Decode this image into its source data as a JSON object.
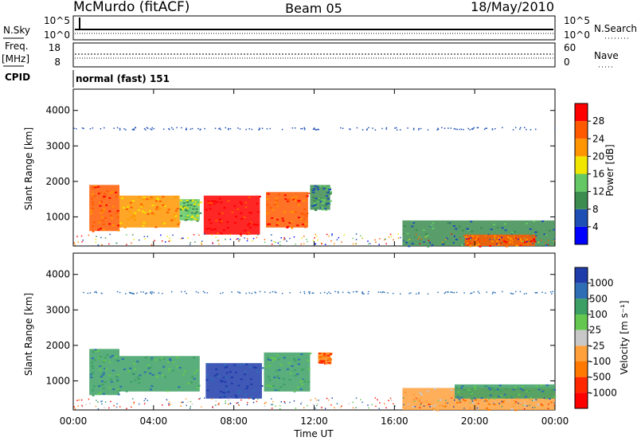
{
  "header": {
    "station": "McMurdo (fitACF)",
    "beam": "Beam 05",
    "date": "18/May/2010"
  },
  "status": {
    "nsky_label": "N.Sky",
    "nsky_ticks": [
      "10^5",
      "10^0"
    ],
    "nsearch_label": "N.Search",
    "nsearch_ticks": [
      "10^5",
      "10^0"
    ],
    "freq_label": "Freq.",
    "freq_unit": "[MHz]",
    "freq_ticks": [
      "18",
      "8"
    ],
    "nave_label": "Nave",
    "nave_ticks": [
      "60",
      "0"
    ],
    "cpid_label": "CPID",
    "cpid_value": "normal (fast) 151"
  },
  "colors": {
    "power": [
      "#0000ff",
      "#1e4fb4",
      "#3c8c50",
      "#64c864",
      "#f0e600",
      "#ff9600",
      "#ff5a00",
      "#ff0000"
    ],
    "velocity": [
      "#1e3caa",
      "#2d6eb4",
      "#3ca064",
      "#64c850",
      "#c8c8c8",
      "#ffa03c",
      "#ff7800",
      "#ff2800",
      "#ff0000"
    ]
  },
  "chart_data": [
    {
      "type": "heatmap",
      "title": "Beam 05",
      "ylabel": "Slant Range [km]",
      "xlabel": "",
      "x_ticks": [
        "00:00",
        "04:00",
        "08:00",
        "12:00",
        "16:00",
        "20:00",
        "00:00"
      ],
      "y_ticks": [
        "1000",
        "2000",
        "3000",
        "4000"
      ],
      "ylim": [
        180,
        4600
      ],
      "colorbar": {
        "label": "Power [dB]",
        "ticks": [
          "4",
          "8",
          "12",
          "16",
          "20",
          "24",
          "28"
        ]
      },
      "regions": [
        {
          "t0": 0.8,
          "t1": 2.3,
          "r0": 600,
          "r1": 1900,
          "level": 7
        },
        {
          "t0": 2.3,
          "t1": 5.3,
          "r0": 700,
          "r1": 1600,
          "level": 6
        },
        {
          "t0": 5.3,
          "t1": 6.3,
          "r0": 900,
          "r1": 1500,
          "level": 4
        },
        {
          "t0": 6.5,
          "t1": 9.3,
          "r0": 500,
          "r1": 1600,
          "level": 8
        },
        {
          "t0": 9.6,
          "t1": 11.7,
          "r0": 700,
          "r1": 1700,
          "level": 7
        },
        {
          "t0": 11.8,
          "t1": 12.8,
          "r0": 1200,
          "r1": 1900,
          "level": 3
        },
        {
          "t0": 16.4,
          "t1": 24.0,
          "r0": 180,
          "r1": 900,
          "level": 3
        },
        {
          "t0": 19.5,
          "t1": 23.0,
          "r0": 180,
          "r1": 500,
          "level": 7
        }
      ],
      "scatter_band_km": 3500
    },
    {
      "type": "heatmap",
      "xlabel": "Time UT",
      "ylabel": "Slant Range [km]",
      "x_ticks": [
        "00:00",
        "04:00",
        "08:00",
        "12:00",
        "16:00",
        "20:00",
        "00:00"
      ],
      "y_ticks": [
        "1000",
        "2000",
        "3000",
        "4000"
      ],
      "ylim": [
        180,
        4600
      ],
      "colorbar": {
        "label": "Velocity [m s⁻¹]",
        "ticks": [
          "1000",
          "500",
          "100",
          "25",
          "-25",
          "-100",
          "-500",
          "-1000"
        ]
      },
      "regions": [
        {
          "t0": 0.8,
          "t1": 2.3,
          "r0": 600,
          "r1": 1900,
          "level": 3
        },
        {
          "t0": 2.3,
          "t1": 6.3,
          "r0": 700,
          "r1": 1700,
          "level": 3
        },
        {
          "t0": 6.6,
          "t1": 9.4,
          "r0": 500,
          "r1": 1500,
          "level": 1
        },
        {
          "t0": 9.5,
          "t1": 11.8,
          "r0": 700,
          "r1": 1800,
          "level": 3
        },
        {
          "t0": 12.2,
          "t1": 12.8,
          "r0": 1500,
          "r1": 1800,
          "level": 7
        },
        {
          "t0": 16.4,
          "t1": 24.0,
          "r0": 180,
          "r1": 800,
          "level": 6
        },
        {
          "t0": 19.0,
          "t1": 24.0,
          "r0": 500,
          "r1": 900,
          "level": 3
        }
      ],
      "scatter_band_km": 3500
    }
  ]
}
